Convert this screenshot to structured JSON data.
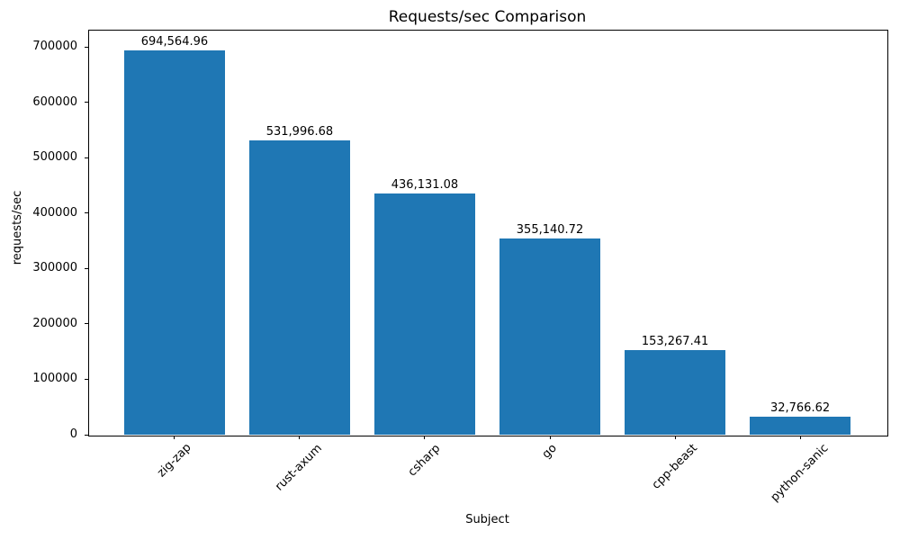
{
  "chart_data": {
    "type": "bar",
    "title": "Requests/sec Comparison",
    "xlabel": "Subject",
    "ylabel": "requests/sec",
    "categories": [
      "zig-zap",
      "rust-axum",
      "csharp",
      "go",
      "cpp-beast",
      "python-sanic"
    ],
    "values": [
      694564.96,
      531996.68,
      436131.08,
      355140.72,
      153267.41,
      32766.62
    ],
    "bar_labels": [
      "694,564.96",
      "531,996.68",
      "436,131.08",
      "355,140.72",
      "153,267.41",
      "32,766.62"
    ],
    "yticks": [
      0,
      100000,
      200000,
      300000,
      400000,
      500000,
      600000,
      700000
    ],
    "ytick_labels": [
      "0",
      "100000",
      "200000",
      "300000",
      "400000",
      "500000",
      "600000",
      "700000"
    ],
    "ylim": [
      0,
      731700
    ],
    "bar_color": "#1f77b4",
    "axis_color": "#000000",
    "grid": false,
    "legend_position": "none",
    "xtick_rotation": 45,
    "bar_width_fraction": 0.8,
    "x_margin_units": 0.69
  }
}
